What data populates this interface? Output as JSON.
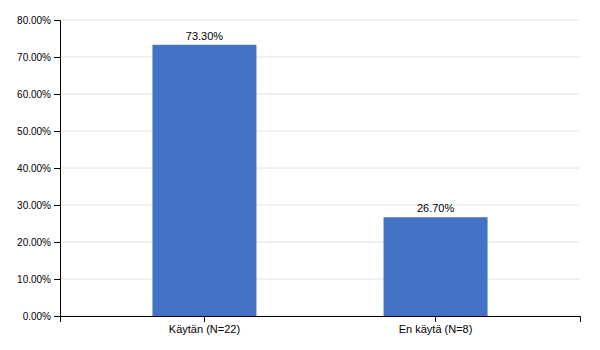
{
  "chart_data": {
    "type": "bar",
    "categories": [
      "Käytän (N=22)",
      "En käytä (N=8)"
    ],
    "values": [
      0.733,
      0.267
    ],
    "value_labels": [
      "73.30%",
      "26.70%"
    ],
    "data_labels": true,
    "color": "#4472C4",
    "ylim": [
      0,
      0.8
    ],
    "yticks": [
      {
        "value": 0.0,
        "label": "0.00%"
      },
      {
        "value": 0.1,
        "label": "10.00%"
      },
      {
        "value": 0.2,
        "label": "20.00%"
      },
      {
        "value": 0.3,
        "label": "30.00%"
      },
      {
        "value": 0.4,
        "label": "40.00%"
      },
      {
        "value": 0.5,
        "label": "50.00%"
      },
      {
        "value": 0.6,
        "label": "60.00%"
      },
      {
        "value": 0.7,
        "label": "70.00%"
      },
      {
        "value": 0.8,
        "label": "80.00%"
      }
    ],
    "grid": true
  }
}
